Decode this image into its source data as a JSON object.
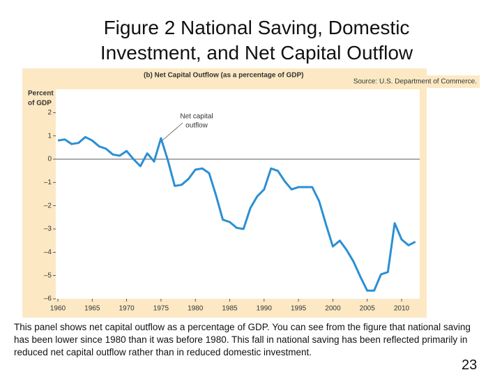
{
  "slide": {
    "title": "Figure 2 National Saving, Domestic Investment, and Net Capital Outflow",
    "caption": "This panel shows net capital outflow as a percentage of GDP. You can see from the figure that national saving has been lower since 1980 than it was before 1980. This fall in national saving has been reflected primarily in reduced net capital outflow rather than in reduced domestic investment.",
    "page_number": "23"
  },
  "chart_data": {
    "type": "line",
    "title": "(b) Net Capital Outflow (as a percentage of GDP)",
    "source": "Source: U.S. Department of Commerce.",
    "y_label": [
      "Percent",
      "of GDP"
    ],
    "annotation": [
      "Net capital",
      "outflow"
    ],
    "color": "#2b8fd3",
    "x": [
      1960,
      1961,
      1962,
      1963,
      1964,
      1965,
      1966,
      1967,
      1968,
      1969,
      1970,
      1971,
      1972,
      1973,
      1974,
      1975,
      1976,
      1977,
      1978,
      1979,
      1980,
      1981,
      1982,
      1983,
      1984,
      1985,
      1986,
      1987,
      1988,
      1989,
      1990,
      1991,
      1992,
      1993,
      1994,
      1995,
      1996,
      1997,
      1998,
      1999,
      2000,
      2001,
      2002,
      2003,
      2004,
      2005,
      2006,
      2007,
      2008,
      2009,
      2010,
      2011,
      2012
    ],
    "values": [
      0.8,
      0.85,
      0.65,
      0.7,
      0.95,
      0.8,
      0.55,
      0.45,
      0.2,
      0.15,
      0.35,
      0.0,
      -0.3,
      0.25,
      -0.1,
      0.9,
      -0.05,
      -1.15,
      -1.1,
      -0.85,
      -0.45,
      -0.4,
      -0.6,
      -1.55,
      -2.6,
      -2.7,
      -2.95,
      -3.0,
      -2.1,
      -1.6,
      -1.3,
      -0.4,
      -0.5,
      -0.95,
      -1.3,
      -1.2,
      -1.2,
      -1.2,
      -1.8,
      -2.8,
      -3.75,
      -3.5,
      -3.9,
      -4.4,
      -5.05,
      -5.65,
      -5.65,
      -4.95,
      -4.85,
      -2.75,
      -3.45,
      -3.7,
      -3.55
    ],
    "xlim": [
      1960,
      2013
    ],
    "xticks": [
      1960,
      1965,
      1970,
      1975,
      1980,
      1985,
      1990,
      1995,
      2000,
      2005,
      2010
    ],
    "ylim": [
      -6,
      3
    ],
    "yticks": [
      {
        "value": -6,
        "label": "–6"
      },
      {
        "value": -5,
        "label": "–5"
      },
      {
        "value": -4,
        "label": "–4"
      },
      {
        "value": -3,
        "label": "–3"
      },
      {
        "value": -2,
        "label": "–2"
      },
      {
        "value": -1,
        "label": "–1"
      },
      0,
      1,
      2
    ]
  }
}
